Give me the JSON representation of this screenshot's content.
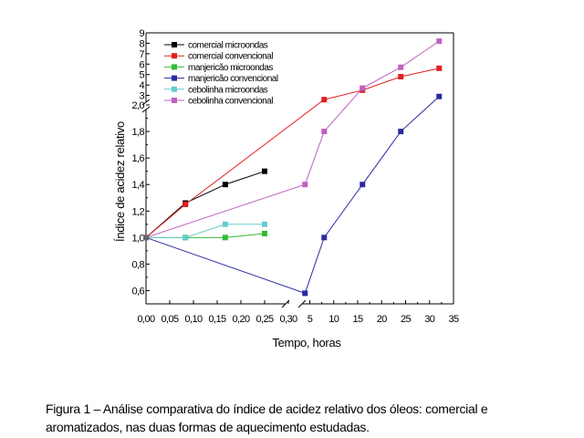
{
  "chart_data": {
    "type": "line",
    "title": "",
    "xlabel": "Tempo, horas",
    "ylabel": "Índice de acidez relativo",
    "x_axis": {
      "segment_minutes": {
        "range": [
          0,
          0.3
        ],
        "ticks": [
          0.0,
          0.05,
          0.1,
          0.15,
          0.2,
          0.25,
          0.3
        ],
        "tick_labels": [
          "0,00",
          "0,05",
          "0,10",
          "0,15",
          "0,20",
          "0,25",
          "0,30"
        ]
      },
      "segment_hours": {
        "range": [
          3,
          35
        ],
        "ticks": [
          5,
          10,
          15,
          20,
          25,
          30,
          35
        ],
        "tick_labels": [
          "5",
          "10",
          "15",
          "20",
          "25",
          "30",
          "35"
        ]
      }
    },
    "y_axis": {
      "segment_low": {
        "range": [
          0.5,
          2.0
        ],
        "ticks": [
          0.6,
          0.8,
          1.0,
          1.2,
          1.4,
          1.6,
          1.8,
          2.0
        ],
        "tick_labels": [
          "0,6",
          "0,8",
          "1,0",
          "1,2",
          "1,4",
          "1,6",
          "1,8",
          "2,0"
        ]
      },
      "segment_high": {
        "range": [
          2,
          9
        ],
        "ticks": [
          3,
          4,
          5,
          6,
          7,
          8,
          9
        ],
        "tick_labels": [
          "3",
          "4",
          "5",
          "6",
          "7",
          "8",
          "9"
        ]
      }
    },
    "legend_position": "top-left",
    "grid": false,
    "series": [
      {
        "name": "comercial microondas",
        "color": "#000000",
        "points": [
          [
            0.0,
            1.0
          ],
          [
            0.083,
            1.26
          ],
          [
            0.167,
            1.4
          ],
          [
            0.25,
            1.5
          ]
        ]
      },
      {
        "name": "comercial convencional",
        "color": "#e02020",
        "points": [
          [
            0.0,
            1.0
          ],
          [
            0.083,
            1.25
          ],
          [
            8,
            2.6
          ],
          [
            16,
            3.5
          ],
          [
            24,
            4.8
          ],
          [
            32,
            5.6
          ]
        ]
      },
      {
        "name": "manjericão microondas",
        "color": "#33bb33",
        "points": [
          [
            0.0,
            1.0
          ],
          [
            0.083,
            1.0
          ],
          [
            0.167,
            1.0
          ],
          [
            0.25,
            1.03
          ]
        ]
      },
      {
        "name": "manjericão convencional",
        "color": "#2a2aa0",
        "points": [
          [
            0.0,
            1.0
          ],
          [
            4,
            0.58
          ],
          [
            8,
            1.0
          ],
          [
            16,
            1.4
          ],
          [
            24,
            1.8
          ],
          [
            32,
            2.9
          ]
        ]
      },
      {
        "name": "cebolinha microondas",
        "color": "#66cccc",
        "points": [
          [
            0.0,
            1.0
          ],
          [
            0.083,
            1.0
          ],
          [
            0.167,
            1.1
          ],
          [
            0.25,
            1.1
          ]
        ]
      },
      {
        "name": "cebolinha convencional",
        "color": "#c060c0",
        "points": [
          [
            0.0,
            1.0
          ],
          [
            4,
            1.4
          ],
          [
            8,
            1.8
          ],
          [
            16,
            3.7
          ],
          [
            24,
            5.7
          ],
          [
            32,
            8.2
          ]
        ]
      }
    ]
  },
  "caption": {
    "line1": "Figura 1 – Análise comparativa do índice de acidez relativo dos óleos: comercial e",
    "line2": "aromatizados, nas duas formas de aquecimento estudadas."
  }
}
